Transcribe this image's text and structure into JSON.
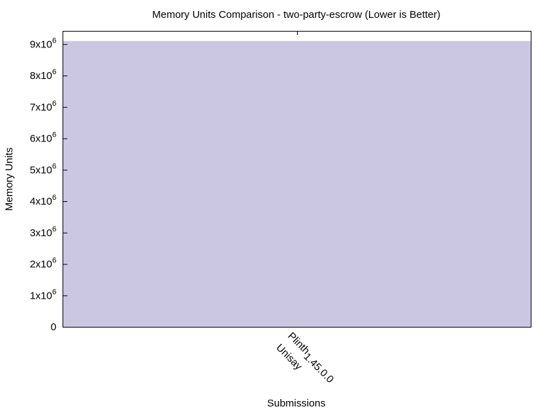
{
  "chart_data": {
    "type": "bar",
    "title": "Memory Units Comparison - two-party-escrow (Lower is Better)",
    "xlabel": "Submissions",
    "ylabel": "Memory Units",
    "ylim": [
      0,
      9400000
    ],
    "yticks": [
      {
        "value": 0,
        "base": "0",
        "exp": ""
      },
      {
        "value": 1000000,
        "base": "1x10",
        "exp": "6"
      },
      {
        "value": 2000000,
        "base": "2x10",
        "exp": "6"
      },
      {
        "value": 3000000,
        "base": "3x10",
        "exp": "6"
      },
      {
        "value": 4000000,
        "base": "4x10",
        "exp": "6"
      },
      {
        "value": 5000000,
        "base": "5x10",
        "exp": "6"
      },
      {
        "value": 6000000,
        "base": "6x10",
        "exp": "6"
      },
      {
        "value": 7000000,
        "base": "7x10",
        "exp": "6"
      },
      {
        "value": 8000000,
        "base": "8x10",
        "exp": "6"
      },
      {
        "value": 9000000,
        "base": "9x10",
        "exp": "6"
      }
    ],
    "categories": [
      {
        "line1": "Plinth",
        "subscript": "1.45.0.0",
        "line2": "Unisay"
      }
    ],
    "values": [
      9100000
    ],
    "colors": {
      "bar": "#cbc7e2",
      "axis": "#000000"
    },
    "grid": false,
    "legend": "none"
  }
}
